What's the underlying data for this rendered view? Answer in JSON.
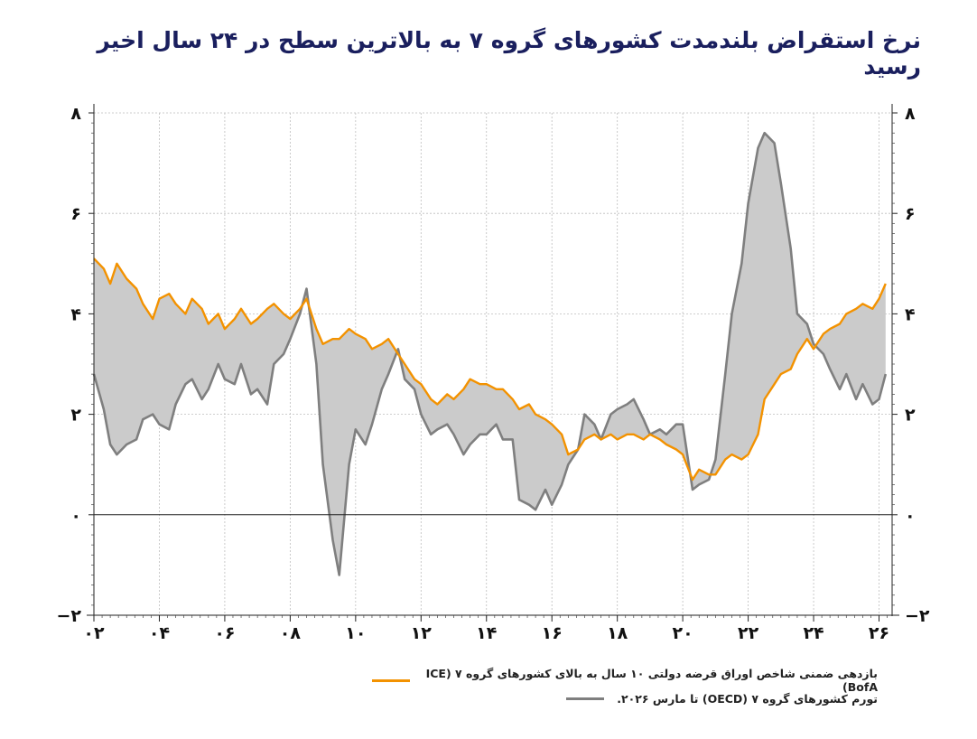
{
  "title": "نرخ  استقراض بلندمدت کشورهای گروه ۷ به بالاترین سطح در ۲۴ سال اخیر رسید",
  "chart_data": {
    "type": "line",
    "x_range": [
      2002,
      2026.4
    ],
    "ylim": [
      -2,
      8
    ],
    "y_ticks": [
      -2,
      0,
      2,
      4,
      6,
      8
    ],
    "y_tick_labels": [
      "−۲",
      "۰",
      "۲",
      "۴",
      "۶",
      "۸"
    ],
    "x_ticks": [
      2002,
      2004,
      2006,
      2008,
      2010,
      2012,
      2014,
      2016,
      2018,
      2020,
      2022,
      2024,
      2026
    ],
    "x_tick_labels": [
      "۰۲",
      "۰۴",
      "۰۶",
      "۰۸",
      "۱۰",
      "۱۲",
      "۱۴",
      "۱۶",
      "۱۸",
      "۲۰",
      "۲۲",
      "۲۴",
      "۲۶"
    ],
    "fill_between_series": true,
    "grid": true,
    "legend_position": "bottom",
    "colors": {
      "yield": "#f39200",
      "inflation": "#7f7f7f",
      "fill": "#cbcbcb",
      "title": "#1a1f5e"
    },
    "series": [
      {
        "name": "بازدهی ضمنی شاخص اوراق قرضه دولتی ۱۰ سال به بالای کشورهای گروه ۷ (ICE BofA)",
        "x": [
          2002.0,
          2002.3,
          2002.5,
          2002.7,
          2003.0,
          2003.3,
          2003.5,
          2003.8,
          2004.0,
          2004.3,
          2004.5,
          2004.8,
          2005.0,
          2005.3,
          2005.5,
          2005.8,
          2006.0,
          2006.3,
          2006.5,
          2006.8,
          2007.0,
          2007.3,
          2007.5,
          2007.8,
          2008.0,
          2008.3,
          2008.5,
          2008.8,
          2009.0,
          2009.3,
          2009.5,
          2009.8,
          2010.0,
          2010.3,
          2010.5,
          2010.8,
          2011.0,
          2011.3,
          2011.5,
          2011.8,
          2012.0,
          2012.3,
          2012.5,
          2012.8,
          2013.0,
          2013.3,
          2013.5,
          2013.8,
          2014.0,
          2014.3,
          2014.5,
          2014.8,
          2015.0,
          2015.3,
          2015.5,
          2015.8,
          2016.0,
          2016.3,
          2016.5,
          2016.8,
          2017.0,
          2017.3,
          2017.5,
          2017.8,
          2018.0,
          2018.3,
          2018.5,
          2018.8,
          2019.0,
          2019.3,
          2019.5,
          2019.8,
          2020.0,
          2020.3,
          2020.5,
          2020.8,
          2021.0,
          2021.3,
          2021.5,
          2021.8,
          2022.0,
          2022.3,
          2022.5,
          2022.8,
          2023.0,
          2023.3,
          2023.5,
          2023.8,
          2024.0,
          2024.3,
          2024.5,
          2024.8,
          2025.0,
          2025.3,
          2025.5,
          2025.8,
          2026.0,
          2026.2
        ],
        "values": [
          5.1,
          4.9,
          4.6,
          5.0,
          4.7,
          4.5,
          4.2,
          3.9,
          4.3,
          4.4,
          4.2,
          4.0,
          4.3,
          4.1,
          3.8,
          4.0,
          3.7,
          3.9,
          4.1,
          3.8,
          3.9,
          4.1,
          4.2,
          4.0,
          3.9,
          4.1,
          4.3,
          3.7,
          3.4,
          3.5,
          3.5,
          3.7,
          3.6,
          3.5,
          3.3,
          3.4,
          3.5,
          3.2,
          3.0,
          2.7,
          2.6,
          2.3,
          2.2,
          2.4,
          2.3,
          2.5,
          2.7,
          2.6,
          2.6,
          2.5,
          2.5,
          2.3,
          2.1,
          2.2,
          2.0,
          1.9,
          1.8,
          1.6,
          1.2,
          1.3,
          1.5,
          1.6,
          1.5,
          1.6,
          1.5,
          1.6,
          1.6,
          1.5,
          1.6,
          1.5,
          1.4,
          1.3,
          1.2,
          0.7,
          0.9,
          0.8,
          0.8,
          1.1,
          1.2,
          1.1,
          1.2,
          1.6,
          2.3,
          2.6,
          2.8,
          2.9,
          3.2,
          3.5,
          3.3,
          3.6,
          3.7,
          3.8,
          4.0,
          4.1,
          4.2,
          4.1,
          4.3,
          4.6
        ]
      },
      {
        "name": "تورم کشورهای گروه ۷ (OECD) تا مارس ۲۰۲۶.",
        "x": [
          2002.0,
          2002.3,
          2002.5,
          2002.7,
          2003.0,
          2003.3,
          2003.5,
          2003.8,
          2004.0,
          2004.3,
          2004.5,
          2004.8,
          2005.0,
          2005.3,
          2005.5,
          2005.8,
          2006.0,
          2006.3,
          2006.5,
          2006.8,
          2007.0,
          2007.3,
          2007.5,
          2007.8,
          2008.0,
          2008.3,
          2008.5,
          2008.8,
          2009.0,
          2009.3,
          2009.5,
          2009.8,
          2010.0,
          2010.3,
          2010.5,
          2010.8,
          2011.0,
          2011.3,
          2011.5,
          2011.8,
          2012.0,
          2012.3,
          2012.5,
          2012.8,
          2013.0,
          2013.3,
          2013.5,
          2013.8,
          2014.0,
          2014.3,
          2014.5,
          2014.8,
          2015.0,
          2015.3,
          2015.5,
          2015.8,
          2016.0,
          2016.3,
          2016.5,
          2016.8,
          2017.0,
          2017.3,
          2017.5,
          2017.8,
          2018.0,
          2018.3,
          2018.5,
          2018.8,
          2019.0,
          2019.3,
          2019.5,
          2019.8,
          2020.0,
          2020.3,
          2020.5,
          2020.8,
          2021.0,
          2021.3,
          2021.5,
          2021.8,
          2022.0,
          2022.3,
          2022.5,
          2022.8,
          2023.0,
          2023.3,
          2023.5,
          2023.8,
          2024.0,
          2024.3,
          2024.5,
          2024.8,
          2025.0,
          2025.3,
          2025.5,
          2025.8,
          2026.0,
          2026.2
        ],
        "values": [
          2.8,
          2.1,
          1.4,
          1.2,
          1.4,
          1.5,
          1.9,
          2.0,
          1.8,
          1.7,
          2.2,
          2.6,
          2.7,
          2.3,
          2.5,
          3.0,
          2.7,
          2.6,
          3.0,
          2.4,
          2.5,
          2.2,
          3.0,
          3.2,
          3.5,
          4.0,
          4.5,
          3.0,
          1.0,
          -0.5,
          -1.2,
          1.0,
          1.7,
          1.4,
          1.8,
          2.5,
          2.8,
          3.3,
          2.7,
          2.5,
          2.0,
          1.6,
          1.7,
          1.8,
          1.6,
          1.2,
          1.4,
          1.6,
          1.6,
          1.8,
          1.5,
          1.5,
          0.3,
          0.2,
          0.1,
          0.5,
          0.2,
          0.6,
          1.0,
          1.3,
          2.0,
          1.8,
          1.5,
          2.0,
          2.1,
          2.2,
          2.3,
          1.9,
          1.6,
          1.7,
          1.6,
          1.8,
          1.8,
          0.5,
          0.6,
          0.7,
          1.1,
          2.8,
          4.0,
          5.0,
          6.2,
          7.3,
          7.6,
          7.4,
          6.6,
          5.3,
          4.0,
          3.8,
          3.4,
          3.2,
          2.9,
          2.5,
          2.8,
          2.3,
          2.6,
          2.2,
          2.3,
          2.8
        ]
      }
    ]
  }
}
